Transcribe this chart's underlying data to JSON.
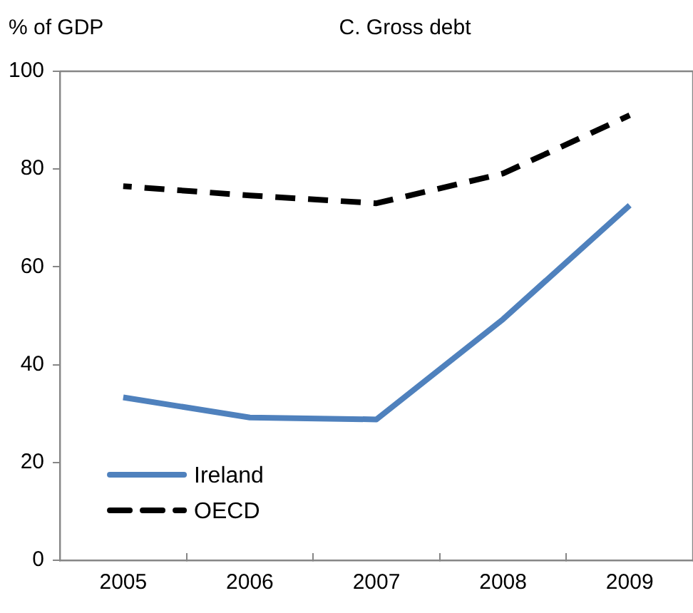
{
  "chart_data": {
    "type": "line",
    "title": "C. Gross debt",
    "ylabel": "% of GDP",
    "categories": [
      "2005",
      "2006",
      "2007",
      "2008",
      "2009"
    ],
    "series": [
      {
        "name": "Ireland",
        "color": "#4f81bd",
        "line_style": "solid",
        "values": [
          33.3,
          29.2,
          28.8,
          49.3,
          72.6
        ]
      },
      {
        "name": "OECD",
        "color": "#000000",
        "line_style": "dashed",
        "values": [
          76.5,
          74.6,
          73,
          79.1,
          91
        ]
      }
    ],
    "ylim": [
      0,
      100
    ],
    "yticks": [
      0,
      20,
      40,
      60,
      80,
      100
    ],
    "grid": false,
    "legend": "bottom left",
    "marker": "none"
  }
}
